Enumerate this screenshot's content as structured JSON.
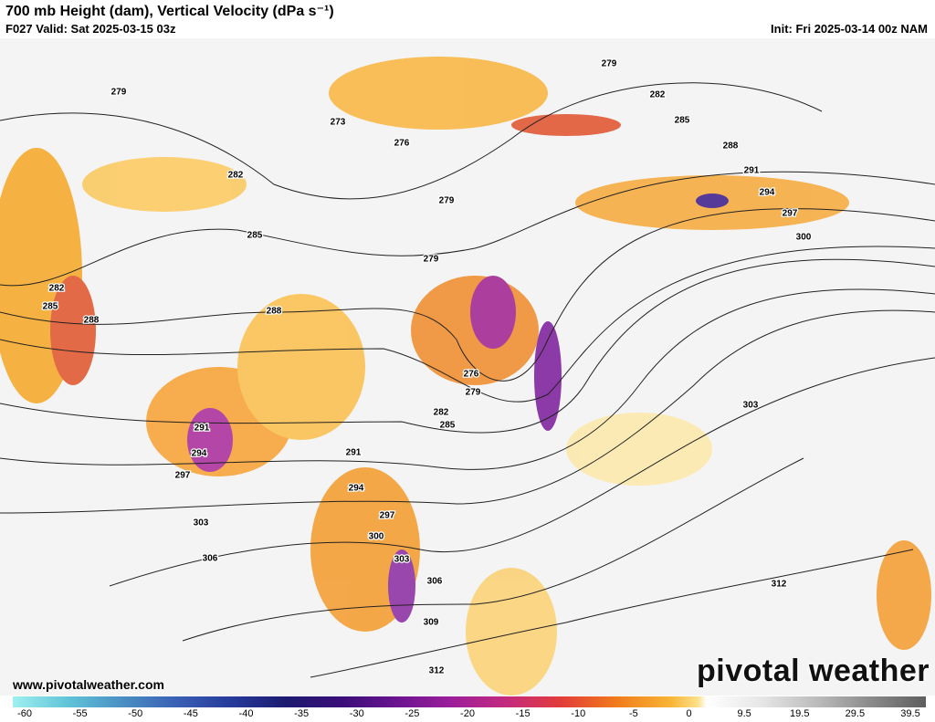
{
  "header": {
    "title": "700 mb Height (dam), Vertical Velocity (dPa s⁻¹)",
    "valid": "F027 Valid: Sat 2025-03-15 03z",
    "init": "Init: Fri 2025-03-14 00z NAM"
  },
  "contour_labels": [
    279,
    273,
    276,
    279,
    282,
    279,
    282,
    285,
    288,
    291,
    294,
    297,
    300,
    285,
    279,
    282,
    285,
    288,
    288,
    276,
    279,
    282,
    285,
    291,
    294,
    297,
    300,
    303,
    306,
    309,
    312,
    303,
    306,
    297,
    294,
    291,
    303,
    312
  ],
  "colorbar": {
    "ticks": [
      -60,
      -55,
      -50,
      -45,
      -40,
      -35,
      -30,
      -25,
      -20,
      -15,
      -10,
      -5,
      0,
      9.5,
      19.5,
      29.5,
      39.5
    ]
  },
  "footer": {
    "website": "www.pivotalweather.com",
    "logo": "pivotal weather"
  }
}
